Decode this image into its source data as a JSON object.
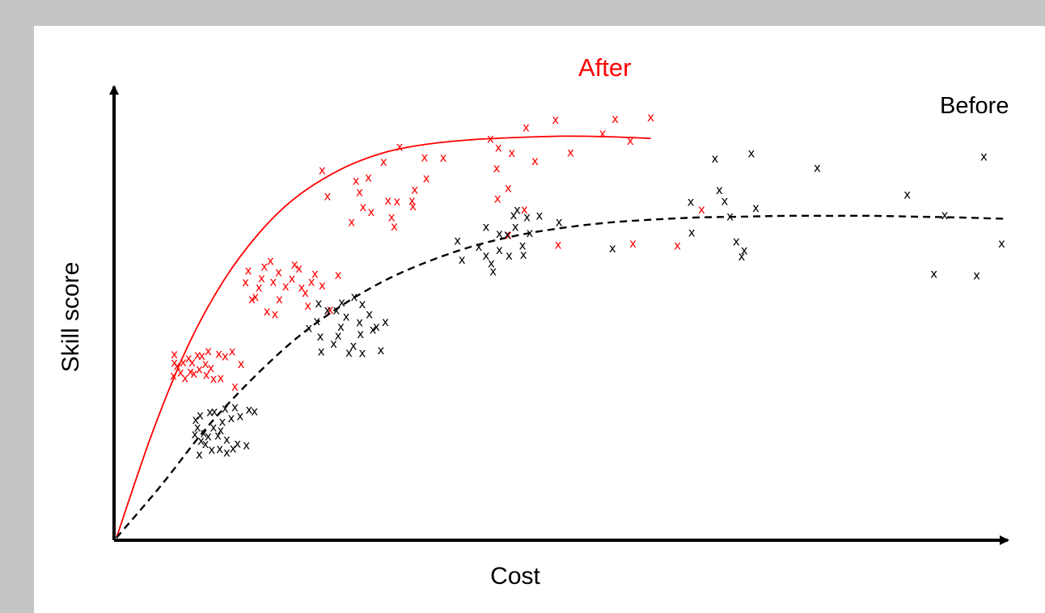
{
  "chart_data": {
    "type": "scatter",
    "xlabel": "Cost",
    "ylabel": "Skill score",
    "xlim": [
      0,
      100
    ],
    "ylim": [
      0,
      100
    ],
    "grid": false,
    "marker": "x",
    "series": [
      {
        "name": "After",
        "color": "#ff0000",
        "line_style": "solid",
        "trend": {
          "x": [
            0,
            4,
            8,
            12,
            16,
            20,
            25,
            30,
            35,
            40,
            45,
            50,
            55,
            60
          ],
          "y": [
            0,
            24,
            44,
            59,
            70,
            78,
            84.5,
            88.5,
            90.5,
            91.5,
            92,
            92.3,
            92.2,
            91.8
          ]
        },
        "points": [
          [
            6.5,
            40.2
          ],
          [
            6.4,
            37.3
          ],
          [
            6.5,
            42.2
          ],
          [
            6.8,
            39.5
          ],
          [
            7.2,
            38
          ],
          [
            7.5,
            40.3
          ],
          [
            7.7,
            36.7
          ],
          [
            8.1,
            41.3
          ],
          [
            8.3,
            38.2
          ],
          [
            8.5,
            40.3
          ],
          [
            8.7,
            37.7
          ],
          [
            9.1,
            42
          ],
          [
            9.3,
            38.8
          ],
          [
            9.6,
            41.8
          ],
          [
            10,
            40
          ],
          [
            10.1,
            37.5
          ],
          [
            10.3,
            42.9
          ],
          [
            10.6,
            39
          ],
          [
            10.9,
            36.5
          ],
          [
            11.5,
            42.3
          ],
          [
            11.7,
            36.7
          ],
          [
            12.2,
            41.7
          ],
          [
            13,
            42.8
          ],
          [
            13.3,
            34.8
          ],
          [
            14,
            40
          ],
          [
            14.8,
            61.4
          ],
          [
            14.5,
            58.7
          ],
          [
            15.6,
            55.4
          ],
          [
            16,
            57.5
          ],
          [
            16.3,
            59.7
          ],
          [
            15.2,
            54.8
          ],
          [
            16.6,
            62.4
          ],
          [
            17.3,
            63.7
          ],
          [
            17.6,
            58.8
          ],
          [
            18.2,
            61.1
          ],
          [
            18.3,
            54.8
          ],
          [
            16.9,
            52
          ],
          [
            19,
            57.8
          ],
          [
            17.8,
            51.4
          ],
          [
            19.7,
            59.6
          ],
          [
            20,
            62.8
          ],
          [
            20.5,
            61.9
          ],
          [
            20.8,
            57.5
          ],
          [
            21.2,
            56.3
          ],
          [
            21.5,
            53.3
          ],
          [
            22.3,
            60.7
          ],
          [
            21.9,
            58.8
          ],
          [
            23.1,
            58
          ],
          [
            24,
            52.4
          ],
          [
            24.9,
            60.4
          ],
          [
            23.7,
            78.5
          ],
          [
            23.1,
            84.5
          ],
          [
            26.4,
            72.6
          ],
          [
            27.3,
            79.5
          ],
          [
            27.7,
            76
          ],
          [
            28.3,
            82.8
          ],
          [
            26.9,
            82.1
          ],
          [
            28.6,
            74.9
          ],
          [
            30.5,
            77.5
          ],
          [
            31.2,
            71.6
          ],
          [
            30,
            86.4
          ],
          [
            31.5,
            77.3
          ],
          [
            31.8,
            89.9
          ],
          [
            30.9,
            73.7
          ],
          [
            33.2,
            77.5
          ],
          [
            33.5,
            80
          ],
          [
            33.3,
            76.2
          ],
          [
            34.6,
            87.5
          ],
          [
            34.8,
            82.6
          ],
          [
            36.7,
            87.4
          ],
          [
            42,
            91.7
          ],
          [
            42.7,
            84.9
          ],
          [
            42.9,
            89.7
          ],
          [
            44,
            80.4
          ],
          [
            42.8,
            78
          ],
          [
            44.4,
            88.5
          ],
          [
            44,
            69.6
          ],
          [
            46,
            94.3
          ],
          [
            45.8,
            75.5
          ],
          [
            47,
            86.6
          ],
          [
            49.3,
            96.1
          ],
          [
            49.6,
            67.4
          ],
          [
            51,
            88.6
          ],
          [
            54.6,
            92.9
          ],
          [
            56,
            96.3
          ],
          [
            57.7,
            91.3
          ],
          [
            60,
            96.7
          ],
          [
            58,
            67.7
          ],
          [
            63,
            67.2
          ],
          [
            65.7,
            75.5
          ]
        ]
      },
      {
        "name": "Before",
        "color": "#000000",
        "line_style": "dashed",
        "trend": {
          "x": [
            0,
            5,
            10,
            15,
            20,
            25,
            30,
            35,
            40,
            45,
            50,
            55,
            60,
            65,
            70,
            75,
            80,
            85,
            90,
            95,
            100
          ],
          "y": [
            0,
            12,
            25,
            36,
            45.5,
            53,
            59,
            63.5,
            67,
            69.5,
            71.2,
            72.4,
            73.1,
            73.6,
            73.8,
            74,
            74,
            74,
            73.8,
            73.6,
            73.3
          ]
        },
        "points": [
          [
            9.1,
            25.4
          ],
          [
            8.9,
            27.1
          ],
          [
            9.4,
            28.2
          ],
          [
            8.8,
            23.8
          ],
          [
            9.5,
            22.3
          ],
          [
            9.3,
            19.1
          ],
          [
            9.8,
            24.1
          ],
          [
            10,
            21.6
          ],
          [
            10.3,
            23.3
          ],
          [
            10.5,
            28.9
          ],
          [
            10.9,
            25.4
          ],
          [
            10.7,
            20.3
          ],
          [
            11,
            29
          ],
          [
            11.4,
            23.5
          ],
          [
            11.7,
            24.7
          ],
          [
            11.6,
            20.4
          ],
          [
            11.9,
            26.7
          ],
          [
            12.4,
            22.6
          ],
          [
            12.2,
            29.7
          ],
          [
            12.4,
            19.6
          ],
          [
            12.9,
            27.5
          ],
          [
            13.3,
            30
          ],
          [
            13.6,
            21.7
          ],
          [
            13.9,
            28
          ],
          [
            14.6,
            21.3
          ],
          [
            14.9,
            29.5
          ],
          [
            15.5,
            29.1
          ],
          [
            13.1,
            20.5
          ],
          [
            21.6,
            48.2
          ],
          [
            22.5,
            49.8
          ],
          [
            22.9,
            46.3
          ],
          [
            22.7,
            53.9
          ],
          [
            23.7,
            52.3
          ],
          [
            23,
            42.8
          ],
          [
            24.4,
            44.6
          ],
          [
            24.9,
            46.5
          ],
          [
            24.7,
            52.3
          ],
          [
            25.3,
            54.1
          ],
          [
            25.8,
            50.8
          ],
          [
            25.2,
            48.5
          ],
          [
            26.1,
            42.6
          ],
          [
            26.6,
            44.1
          ],
          [
            26.7,
            55.4
          ],
          [
            27.4,
            46.8
          ],
          [
            27.3,
            49.5
          ],
          [
            27.6,
            53.7
          ],
          [
            27.6,
            42.5
          ],
          [
            28.4,
            51.4
          ],
          [
            28.8,
            47.9
          ],
          [
            29.2,
            48.5
          ],
          [
            29.7,
            43.1
          ],
          [
            30.2,
            49.6
          ],
          [
            38.3,
            68.3
          ],
          [
            38.8,
            63.9
          ],
          [
            40.7,
            66.9
          ],
          [
            41.5,
            71.5
          ],
          [
            41.5,
            64.9
          ],
          [
            42.1,
            63.1
          ],
          [
            42.3,
            61.2
          ],
          [
            43,
            69.9
          ],
          [
            43,
            66.2
          ],
          [
            43.9,
            69.7
          ],
          [
            44.1,
            64.9
          ],
          [
            44.6,
            74.2
          ],
          [
            44.8,
            71.5
          ],
          [
            45,
            75.4
          ],
          [
            45.6,
            67.2
          ],
          [
            45.7,
            65.1
          ],
          [
            46.1,
            73.7
          ],
          [
            46.4,
            70.1
          ],
          [
            47.5,
            74.1
          ],
          [
            49.7,
            72.6
          ],
          [
            55.7,
            66.5
          ],
          [
            64.5,
            77.2
          ],
          [
            64.6,
            70.2
          ],
          [
            67.2,
            87.2
          ],
          [
            67.7,
            79.9
          ],
          [
            68.3,
            77.4
          ],
          [
            68.9,
            73.9
          ],
          [
            69.6,
            68.1
          ],
          [
            70.2,
            64.7
          ],
          [
            70.5,
            66.1
          ],
          [
            71.3,
            88.4
          ],
          [
            71.8,
            75.8
          ],
          [
            78.7,
            85
          ],
          [
            88.8,
            78.9
          ],
          [
            91.8,
            60.7
          ],
          [
            93,
            74.2
          ],
          [
            96.6,
            60.3
          ],
          [
            97.4,
            87.6
          ],
          [
            99.4,
            67.7
          ]
        ]
      }
    ],
    "annotations": [
      {
        "text": "After",
        "color": "#ff0000",
        "near": "red curve, above"
      },
      {
        "text": "Before",
        "color": "#000000",
        "near": "black dashed curve, top-right"
      }
    ]
  }
}
